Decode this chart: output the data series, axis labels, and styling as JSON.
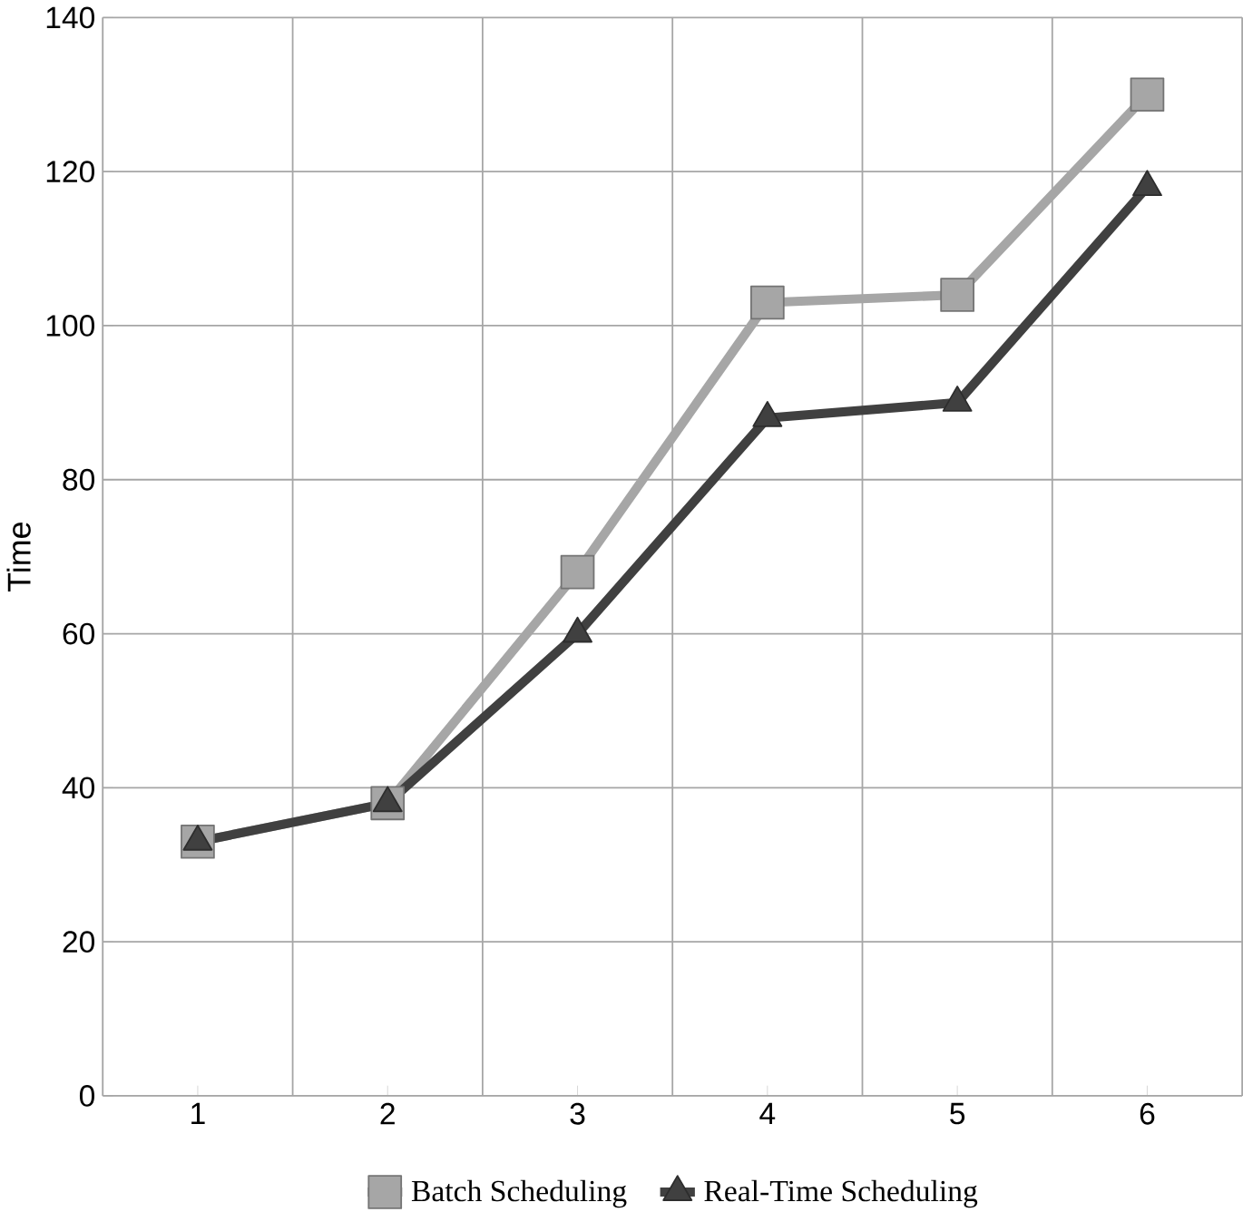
{
  "chart_data": {
    "type": "line",
    "ylabel": "Time",
    "categories": [
      "1",
      "2",
      "3",
      "4",
      "5",
      "6"
    ],
    "series": [
      {
        "name": "Batch Scheduling",
        "color": "#a6a6a6",
        "marker": "square",
        "values": [
          33,
          38,
          68,
          103,
          104,
          130
        ]
      },
      {
        "name": "Real-Time Scheduling",
        "color": "#404040",
        "marker": "triangle",
        "values": [
          33,
          38,
          60,
          88,
          90,
          118
        ]
      }
    ],
    "ylim": [
      0,
      140
    ],
    "yticks": [
      0,
      20,
      40,
      60,
      80,
      100,
      120,
      140
    ],
    "grid": true,
    "legend": "bottom",
    "line_style": "solid"
  }
}
